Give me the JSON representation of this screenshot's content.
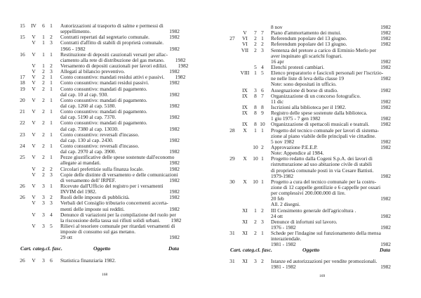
{
  "left_page": {
    "page_number": "168",
    "rows": [
      [
        "15",
        "IV",
        "6",
        "1",
        "Autorizzazioni al trasporto di salme e permessi di",
        ""
      ],
      [
        "",
        "",
        "",
        "",
        "seppellimento.",
        "1982"
      ],
      [
        "15",
        "V",
        "1",
        "2",
        "Contratti repertati dal segretario comunale.",
        "1982"
      ],
      [
        "",
        "V",
        "1",
        "3",
        "Contratti d'affitto di stabili di proprietà comunale.",
        ""
      ],
      [
        "",
        "",
        "",
        "",
        "1966 - 1982",
        "1982"
      ],
      [
        "16",
        "V",
        "1",
        "1",
        "Restituzione di depositi cauzionali versati per allac-",
        ""
      ],
      [
        "",
        "",
        "",
        "",
        "ciamento alla rete di distribuzione del gas metano.",
        "1982"
      ],
      [
        "",
        "V",
        "1",
        "2",
        "Versamento di depositi cauzionali per lavori edilizi.",
        "1982"
      ],
      [
        "",
        "V",
        "2",
        "3",
        "Allegati al bilancio preventivo.",
        "1982"
      ],
      [
        "17",
        "V",
        "2",
        "1",
        "Conto consuntivo: mandati residui attivi e passivi.",
        "1982"
      ],
      [
        "18",
        "V",
        "2",
        "1",
        "Conto consuntivo: mandati residui passivi.",
        "1982"
      ],
      [
        "19",
        "V",
        "2",
        "1",
        "Conto consuntivo: mandati di pagamento.",
        ""
      ],
      [
        "",
        "",
        "",
        "",
        "dal cap. 10 al cap. 930.",
        "1982"
      ],
      [
        "20",
        "V",
        "2",
        "1",
        "Conto consuntivo: mandati di pagamento.",
        ""
      ],
      [
        "",
        "",
        "",
        "",
        "dal cap. 1260  al cap. 5180.",
        "1982"
      ],
      [
        "21",
        "V",
        "2",
        "1",
        "Conto consuntivo: mandati di pagamento.",
        ""
      ],
      [
        "",
        "",
        "",
        "",
        "dal cap. 5190 al cap. 7370.",
        "1982"
      ],
      [
        "22",
        "V",
        "2",
        "1",
        "Conto consuntivo: mandati di pagamento.",
        ""
      ],
      [
        "",
        "",
        "",
        "",
        "dal cap. 7380 al cap. 13030.",
        "1982"
      ],
      [
        "23",
        "V",
        "2",
        "1",
        "Conto consuntivo: reversali d'incasso.",
        ""
      ],
      [
        "",
        "",
        "",
        "",
        "dal cap. 130 al cap. 2430.",
        "1982"
      ],
      [
        "24",
        "V",
        "2",
        "1",
        "Conto consuntivo: reversali d'incasso.",
        ""
      ],
      [
        "",
        "",
        "",
        "",
        "dal cap. 2970 al cap. 3900.",
        "1982"
      ],
      [
        "25",
        "V",
        "2",
        "1",
        "Pezze giustificative delle spese sostenute dall'economo",
        ""
      ],
      [
        "",
        "",
        "",
        "",
        "allegate ai mandati.",
        "1982"
      ],
      [
        "",
        "V",
        "2",
        "2",
        "Circolari prefettizie sulla finanza locale.",
        "1982"
      ],
      [
        "",
        "V",
        "2",
        "3",
        "Copie delle distinte di versamento e delle comunicazioni",
        ""
      ],
      [
        "",
        "",
        "",
        "",
        "di versamento dell' IRPEF.",
        "1982"
      ],
      [
        "26",
        "V",
        "3",
        "1",
        "Ricevute dall'Ufficio del registro per i versamenti",
        ""
      ],
      [
        "",
        "",
        "",
        "",
        "INVIM del 1982.",
        "1982"
      ],
      [
        "26",
        "V",
        "3",
        "2",
        "Ruoli delle imposte di pubblicità.",
        "1982"
      ],
      [
        "",
        "V",
        "3",
        "3",
        "Verbali del Consiglio tributario concernenti accerta-",
        ""
      ],
      [
        "",
        "",
        "",
        "",
        "menti delle imposte sui redditi.",
        "1982"
      ],
      [
        "",
        "V",
        "3",
        "4",
        "Denunce di variazioni per la compilazione del ruolo per",
        ""
      ],
      [
        "",
        "",
        "",
        "",
        "la riscossione della tassa sui rifiuti solidi urbani.",
        "1982"
      ],
      [
        "",
        "V",
        "3",
        "5",
        "Rilievi al tesoriere comunale per ritardati versamenti di",
        ""
      ],
      [
        "",
        "",
        "",
        "",
        "imposte di consumo sul gas metano.",
        ""
      ],
      [
        "",
        "",
        "",
        "",
        "29 ott",
        "1982"
      ]
    ],
    "header": {
      "cols": "Cart. categ.cl. fasc.",
      "subject": "Oggetto",
      "date": "Data"
    },
    "after_rows": [
      [
        "26",
        "V",
        "3",
        "6",
        "Statistica finanziaria 1982.",
        ""
      ]
    ]
  },
  "right_page": {
    "page_number": "169",
    "rows": [
      [
        "",
        "",
        "",
        "",
        "8 nov",
        "1982"
      ],
      [
        "",
        "V",
        "7",
        "7",
        "Piano d'ammortamento dei mutui.",
        "1982"
      ],
      [
        "27",
        "VI",
        "2",
        "1",
        "Referendum popolare del 13 giugno.",
        "1982"
      ],
      [
        "",
        "VI",
        "2",
        "2",
        "Referendum popolare del 13 giugno.",
        "1982"
      ],
      [
        "",
        "VII",
        "2",
        "3",
        "Sentenza del pretore a carico di Erminio Merlo per",
        ""
      ],
      [
        "",
        "",
        "",
        "",
        "aver inquinato gli scarichi fognari.",
        ""
      ],
      [
        "",
        "",
        "",
        "",
        "16 apr",
        "1982"
      ],
      [
        "",
        "",
        "5",
        "4",
        "Elenchi protesti cambiari.",
        "1982"
      ],
      [
        "",
        "VIII",
        "1",
        "5",
        "Elenco preparatorio  e fascicoli personali per l'iscrizio-",
        ""
      ],
      [
        "",
        "",
        "",
        "",
        "ne nelle liste di leva della classe 19",
        "1982"
      ],
      [
        "",
        "",
        "",
        "",
        "Note: sono depositati in ufficio.",
        ""
      ],
      [
        "",
        "IX",
        "3",
        "6",
        "Assegnazione di borse di studio.",
        "1982"
      ],
      [
        "",
        "IX",
        "8",
        "7",
        "Organizzazione di un concorso fotografico.",
        ""
      ],
      [
        "",
        "",
        "",
        "",
        "11 dic",
        "1982"
      ],
      [
        "",
        "IX",
        "8",
        "8",
        "Iscrizioni alla biblioteca per il 1982.",
        "1982"
      ],
      [
        "",
        "IX",
        "8",
        "9",
        "Registro delle spese sostenute dalla biblioteca.",
        ""
      ],
      [
        "",
        "",
        "",
        "",
        "1 giu 1975 - 7 gen 1982",
        "1982"
      ],
      [
        "",
        "IX",
        "8",
        "10",
        "Organizzazione di spettacoli musicali e teatrali.",
        "1982"
      ],
      [
        "28",
        "X",
        "1",
        "1",
        "Progetto del tecnico comunale per lavori di sistema-",
        ""
      ],
      [
        "",
        "",
        "",
        "",
        "zione al piano viabile delle principali vie cittadine.",
        ""
      ],
      [
        "",
        "",
        "",
        "",
        "5 nov 1982",
        "1982"
      ],
      [
        "",
        "",
        "10",
        "2",
        "Approvazione P.E.E.P.",
        "1982"
      ],
      [
        "",
        "",
        "",
        "",
        "Note: Appendice al 1984.",
        ""
      ],
      [
        "29",
        "X",
        "10",
        "1",
        "Progetto redatto dalla Cogeni S.p.A. dei lavori di",
        ""
      ],
      [
        "",
        "",
        "",
        "",
        "ristrutturazione ad uso abitazione civile di stabili",
        ""
      ],
      [
        "",
        "",
        "",
        "",
        "di proprietà comunale posti in via Cesare Battisti.",
        ""
      ],
      [
        "",
        "",
        "",
        "",
        "1979-1982",
        "1982"
      ],
      [
        "30",
        "X",
        "10",
        "1",
        "Progetto a cura del tecnico comunale per la costru-",
        ""
      ],
      [
        "",
        "",
        "",
        "",
        "zione di 12 cappelle gentilizie e 6 cappelle per ossari",
        ""
      ],
      [
        "",
        "",
        "",
        "",
        "per complessivi 200.000.000 di lire.",
        ""
      ],
      [
        "",
        "",
        "",
        "",
        "20 feb",
        "1982"
      ],
      [
        "",
        "",
        "",
        "",
        "All. 2 disegni.",
        ""
      ],
      [
        "",
        "XI",
        "1",
        "2",
        "III Censimento generale dell'agricoltura .",
        ""
      ],
      [
        "",
        "",
        "",
        "",
        "24 ott",
        "1982"
      ],
      [
        "",
        "XI",
        "2",
        "3",
        "Denunce di infortuni sul lavoro.",
        ""
      ],
      [
        "",
        "",
        "",
        "",
        "1976 - 1982",
        "1982"
      ],
      [
        "31",
        "XI",
        "2",
        "1",
        "Schede per l'indagine sul funzionamento della mensa",
        ""
      ],
      [
        "",
        "",
        "",
        "",
        "interaziendale.",
        ""
      ],
      [
        "",
        "",
        "",
        "",
        "1981 - 1982",
        "1982"
      ]
    ],
    "header": {
      "cols": "Cart. categ.cl. fasc.",
      "subject": "Oggetto",
      "date": "Data"
    },
    "after_rows": [
      [
        "31",
        "XI",
        "3",
        "2",
        "Istanze ed autorizzazioni per vendite promozionali.",
        ""
      ],
      [
        "",
        "",
        "",
        "",
        "1981 - 1982",
        "1982"
      ]
    ]
  }
}
